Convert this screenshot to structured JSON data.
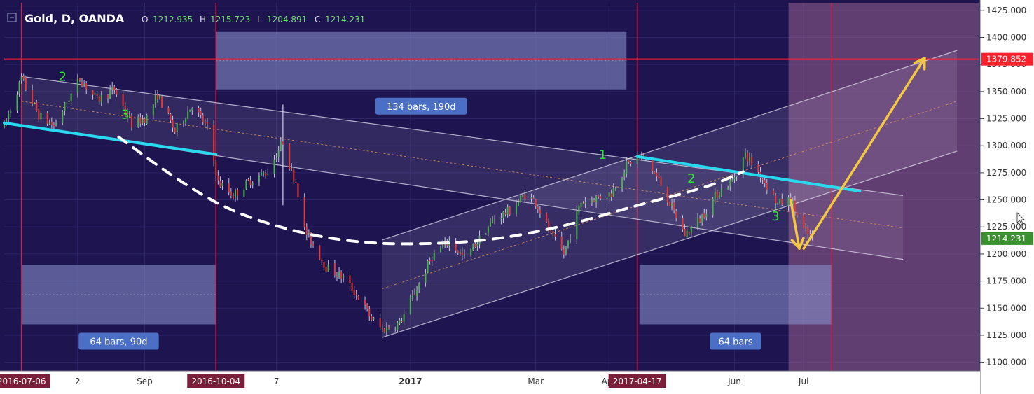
{
  "header": {
    "symbol": "Gold, D, OANDA",
    "o_label": "O",
    "o_value": "1212.935",
    "h_label": "H",
    "h_value": "1215.723",
    "l_label": "L",
    "l_value": "1204.891",
    "c_label": "C",
    "c_value": "1214.231"
  },
  "colors": {
    "background": "#1e1550",
    "up_candle": "#4caf50",
    "down_candle": "#e53935",
    "trend_line": "#29d9f0",
    "horizontal_level": "#ff1f2d",
    "arrow": "#f5c842",
    "wave_label": "#2ee82e",
    "price_badge": "#3a8f2e"
  },
  "chart_data": {
    "type": "candlestick",
    "symbol": "Gold",
    "timeframe": "D",
    "source": "OANDA",
    "ylim": [
      1092,
      1432
    ],
    "y_ticks": [
      1100,
      1125,
      1150,
      1175,
      1200,
      1225,
      1250,
      1275,
      1300,
      1325,
      1350,
      1375,
      1400,
      1425
    ],
    "y_tick_labels": [
      "1100.000",
      "1125.000",
      "1150.000",
      "1175.000",
      "1200.000",
      "1225.000",
      "1250.000",
      "1275.000",
      "1300.000",
      "1325.000",
      "1350.000",
      "1375.000",
      "1400.000",
      "1425.000"
    ],
    "x_range": [
      "2016-06-28",
      "2017-09-22"
    ],
    "x_tick_labels": [
      {
        "date": "2016-07-06",
        "label": "2016-07-06",
        "highlight": true
      },
      {
        "date": "2016-08-01",
        "label": "2",
        "highlight": false
      },
      {
        "date": "2016-09-01",
        "label": "Sep",
        "highlight": false
      },
      {
        "date": "2016-10-04",
        "label": "2016-10-04",
        "highlight": true
      },
      {
        "date": "2016-11-01",
        "label": "7",
        "highlight": false
      },
      {
        "date": "2017-01-02",
        "label": "2017",
        "highlight": false,
        "bold": true
      },
      {
        "date": "2017-03-01",
        "label": "Mar",
        "highlight": false
      },
      {
        "date": "2017-04-03",
        "label": "Ap",
        "highlight": false
      },
      {
        "date": "2017-04-17",
        "label": "2017-04-17",
        "highlight": true
      },
      {
        "date": "2017-06-01",
        "label": "Jun",
        "highlight": false
      },
      {
        "date": "2017-07-03",
        "label": "Jul",
        "highlight": false
      }
    ],
    "price_path": [
      [
        "2016-06-28",
        1318
      ],
      [
        "2016-07-06",
        1362
      ],
      [
        "2016-07-14",
        1328
      ],
      [
        "2016-07-21",
        1318
      ],
      [
        "2016-08-02",
        1362
      ],
      [
        "2016-08-10",
        1342
      ],
      [
        "2016-08-18",
        1352
      ],
      [
        "2016-08-26",
        1320
      ],
      [
        "2016-09-02",
        1326
      ],
      [
        "2016-09-07",
        1347
      ],
      [
        "2016-09-15",
        1313
      ],
      [
        "2016-09-23",
        1338
      ],
      [
        "2016-09-30",
        1316
      ],
      [
        "2016-10-05",
        1266
      ],
      [
        "2016-10-12",
        1254
      ],
      [
        "2016-10-20",
        1268
      ],
      [
        "2016-10-28",
        1276
      ],
      [
        "2016-11-04",
        1304
      ],
      [
        "2016-11-08",
        1275
      ],
      [
        "2016-11-10",
        1268
      ],
      [
        "2016-11-14",
        1222
      ],
      [
        "2016-11-24",
        1188
      ],
      [
        "2016-12-02",
        1178
      ],
      [
        "2016-12-09",
        1160
      ],
      [
        "2016-12-15",
        1140
      ],
      [
        "2016-12-20",
        1130
      ],
      [
        "2016-12-28",
        1136
      ],
      [
        "2017-01-05",
        1168
      ],
      [
        "2017-01-12",
        1198
      ],
      [
        "2017-01-20",
        1212
      ],
      [
        "2017-01-27",
        1196
      ],
      [
        "2017-02-03",
        1214
      ],
      [
        "2017-02-10",
        1233
      ],
      [
        "2017-02-17",
        1240
      ],
      [
        "2017-02-24",
        1255
      ],
      [
        "2017-03-01",
        1248
      ],
      [
        "2017-03-08",
        1218
      ],
      [
        "2017-03-14",
        1200
      ],
      [
        "2017-03-22",
        1248
      ],
      [
        "2017-03-29",
        1252
      ],
      [
        "2017-04-05",
        1256
      ],
      [
        "2017-04-12",
        1282
      ],
      [
        "2017-04-17",
        1290
      ],
      [
        "2017-04-21",
        1288
      ],
      [
        "2017-04-28",
        1264
      ],
      [
        "2017-05-05",
        1234
      ],
      [
        "2017-05-09",
        1218
      ],
      [
        "2017-05-16",
        1232
      ],
      [
        "2017-05-24",
        1256
      ],
      [
        "2017-05-31",
        1268
      ],
      [
        "2017-06-06",
        1292
      ],
      [
        "2017-06-14",
        1270
      ],
      [
        "2017-06-21",
        1246
      ],
      [
        "2017-06-27",
        1250
      ],
      [
        "2017-07-03",
        1222
      ],
      [
        "2017-07-07",
        1214
      ]
    ],
    "last_price": 1214.231,
    "last_price_label": "1214.231",
    "horizontal_level": 1379.852,
    "horizontal_level_label": "1379.852",
    "descending_channel": {
      "upper": [
        [
          "2016-07-06",
          1364
        ],
        [
          "2017-08-18",
          1254
        ]
      ],
      "middle": [
        [
          "2016-07-06",
          1341
        ],
        [
          "2017-08-18",
          1224
        ]
      ],
      "lower": [
        [
          "2016-07-06",
          1318
        ],
        [
          "2017-08-18",
          1195
        ]
      ]
    },
    "ascending_channel": {
      "upper": [
        [
          "2016-12-20",
          1213
        ],
        [
          "2017-09-12",
          1388
        ]
      ],
      "middle": [
        [
          "2016-12-20",
          1168
        ],
        [
          "2017-09-12",
          1341
        ]
      ],
      "lower": [
        [
          "2016-12-20",
          1123
        ],
        [
          "2017-09-12",
          1295
        ]
      ]
    },
    "trend_lines": [
      {
        "role": "cyan-upper",
        "points": [
          [
            "2016-06-28",
            1321
          ],
          [
            "2016-10-04",
            1292
          ]
        ]
      },
      {
        "role": "cyan-lower",
        "points": [
          [
            "2017-04-17",
            1290
          ],
          [
            "2017-07-29",
            1258
          ]
        ]
      }
    ],
    "neckline_curve": [
      [
        "2016-08-20",
        1308
      ],
      [
        "2016-09-15",
        1270
      ],
      [
        "2016-10-10",
        1240
      ],
      [
        "2016-11-10",
        1220
      ],
      [
        "2016-12-10",
        1210
      ],
      [
        "2017-01-10",
        1209
      ],
      [
        "2017-02-10",
        1213
      ],
      [
        "2017-03-15",
        1226
      ],
      [
        "2017-04-17",
        1245
      ],
      [
        "2017-05-20",
        1262
      ],
      [
        "2017-06-05",
        1276
      ]
    ],
    "date_ranges": [
      {
        "label": "64 bars, 90d",
        "start": "2016-07-06",
        "end": "2016-10-04",
        "top": 1190,
        "bottom": 1135
      },
      {
        "label": "134 bars, 190d",
        "start": "2016-10-04",
        "end": "2017-04-12",
        "top": 1405,
        "bottom": 1352
      },
      {
        "label": "64 bars",
        "start": "2017-04-18",
        "end": "2017-07-16",
        "top": 1190,
        "bottom": 1135
      }
    ],
    "future_zone": {
      "start": "2017-06-26",
      "end": "2017-09-22"
    },
    "vertical_lines": [
      "2016-07-06",
      "2016-10-04",
      "2017-04-17",
      "2017-07-16"
    ],
    "gray_marker": {
      "date": "2016-11-04",
      "top": 1338,
      "bottom": 1245
    },
    "wave_labels": [
      {
        "text": "2",
        "date": "2016-07-25",
        "price": 1360
      },
      {
        "text": "3",
        "date": "2016-08-23",
        "price": 1325
      },
      {
        "text": "1",
        "date": "2017-04-01",
        "price": 1288
      },
      {
        "text": "2",
        "date": "2017-05-12",
        "price": 1266
      },
      {
        "text": "3",
        "date": "2017-06-20",
        "price": 1231
      }
    ],
    "arrows": [
      {
        "from": [
          "2017-06-27",
          1250
        ],
        "to": [
          "2017-07-01",
          1205
        ]
      },
      {
        "from": [
          "2017-07-03",
          1205
        ],
        "to": [
          "2017-08-28",
          1381
        ]
      }
    ]
  }
}
